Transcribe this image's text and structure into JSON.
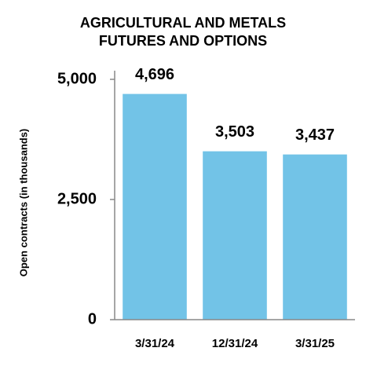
{
  "chart_data": {
    "type": "bar",
    "title": [
      "AGRICULTURAL AND METALS",
      "FUTURES AND OPTIONS"
    ],
    "y_axis_label": "Open contracts (in thousands)",
    "categories": [
      "3/31/24",
      "12/31/24",
      "3/31/25"
    ],
    "values": [
      4696,
      3503,
      3437
    ],
    "value_labels": [
      "4,696",
      "3,503",
      "3,437"
    ],
    "color": "#72c3e7",
    "ylim": [
      0,
      5000
    ],
    "yticks": [
      0,
      {
        "value": 2500,
        "label": "2,500"
      },
      {
        "value": 5000,
        "label": "5,000"
      }
    ]
  }
}
